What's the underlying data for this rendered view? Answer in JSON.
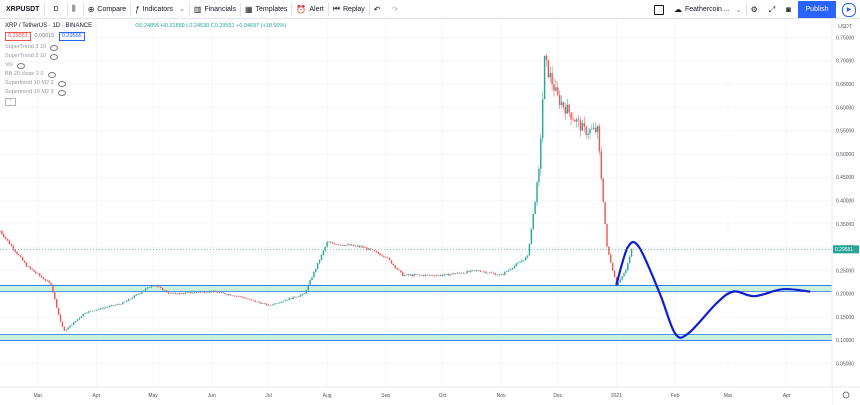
{
  "toolbar": {
    "symbol": "XRPUSDT",
    "interval": "D",
    "compare": "Compare",
    "indicators": "Indicators",
    "financials": "Financials",
    "templates": "Templates",
    "alert": "Alert",
    "replay": "Replay",
    "layout_name": "Feathercoin ...",
    "publish": "Publish"
  },
  "legend": {
    "title": "XRP / TetherUS · 1D · BINANCE",
    "ohlc": "O0.24856 H0.31889 L0.24530 C0.29551 +0.04697 (+18.90%)",
    "bid": "0.29551",
    "spread": "0.00015",
    "ask": "0.29566",
    "indicators": [
      "SuperTrend 3 10",
      "SuperTrend 2 10",
      "Vol",
      "BB 20 close 2 0",
      "Supertrend 10 M2 3",
      "Supertrend 10 M2 3"
    ]
  },
  "colors": {
    "up": "#26a69a",
    "down": "#ef5350",
    "projection": "#0d1fd1",
    "zone_fill": "#c9f2dc",
    "zone_line": "#2a6df4",
    "publish": "#2962ff"
  },
  "chart_data": {
    "type": "candlestick",
    "y_axis_label": "USDT",
    "ylim": [
      0.0,
      0.79
    ],
    "y_ticks": [
      0.05,
      0.1,
      0.15,
      0.2,
      0.25,
      0.3,
      0.35,
      0.4,
      0.45,
      0.5,
      0.55,
      0.6,
      0.65,
      0.7,
      0.75
    ],
    "y_tick_labels": [
      "0.05000",
      "0.10000",
      "0.15000",
      "0.20000",
      "0.25000",
      "0.30000",
      "0.35000",
      "0.40000",
      "0.45000",
      "0.50000",
      "0.55000",
      "0.60000",
      "0.65000",
      "0.70000",
      "0.75000"
    ],
    "last_price": 0.29551,
    "last_price_label": "0.29551",
    "x_labels": [
      "Mar",
      "Apr",
      "May",
      "Jun",
      "Jul",
      "Aug",
      "Sep",
      "Oct",
      "Nov",
      "Dec",
      "2021",
      "Feb",
      "Mar",
      "Apr"
    ],
    "x_label_dates": [
      "2020-03-01",
      "2020-04-01",
      "2020-05-01",
      "2020-06-01",
      "2020-07-01",
      "2020-08-01",
      "2020-09-01",
      "2020-10-01",
      "2020-11-01",
      "2020-12-01",
      "2021-01-01",
      "2021-02-01",
      "2021-03-01",
      "2021-04-01"
    ],
    "x_range": [
      "2020-02-10",
      "2021-04-25"
    ],
    "support_zones": [
      {
        "low": 0.205,
        "high": 0.218
      },
      {
        "low": 0.1,
        "high": 0.113
      }
    ],
    "price_path": [
      [
        "2020-02-10",
        0.335
      ],
      [
        "2020-02-24",
        0.26
      ],
      [
        "2020-03-08",
        0.22
      ],
      [
        "2020-03-13",
        0.14
      ],
      [
        "2020-03-15",
        0.12
      ],
      [
        "2020-03-26",
        0.16
      ],
      [
        "2020-04-15",
        0.18
      ],
      [
        "2020-05-01",
        0.22
      ],
      [
        "2020-05-10",
        0.2
      ],
      [
        "2020-06-01",
        0.205
      ],
      [
        "2020-06-15",
        0.195
      ],
      [
        "2020-07-01",
        0.175
      ],
      [
        "2020-07-20",
        0.2
      ],
      [
        "2020-08-01",
        0.31
      ],
      [
        "2020-08-20",
        0.3
      ],
      [
        "2020-09-01",
        0.28
      ],
      [
        "2020-09-10",
        0.24
      ],
      [
        "2020-10-01",
        0.24
      ],
      [
        "2020-10-20",
        0.25
      ],
      [
        "2020-11-01",
        0.24
      ],
      [
        "2020-11-15",
        0.28
      ],
      [
        "2020-11-21",
        0.46
      ],
      [
        "2020-11-24",
        0.7
      ],
      [
        "2020-12-01",
        0.62
      ],
      [
        "2020-12-15",
        0.55
      ],
      [
        "2020-12-22",
        0.55
      ],
      [
        "2020-12-27",
        0.3
      ],
      [
        "2021-01-01",
        0.22
      ],
      [
        "2021-01-06",
        0.25
      ],
      [
        "2021-01-09",
        0.29551
      ]
    ],
    "projection_path": [
      [
        "2021-01-01",
        0.22
      ],
      [
        "2021-01-07",
        0.3
      ],
      [
        "2021-01-13",
        0.3
      ],
      [
        "2021-01-24",
        0.2
      ],
      [
        "2021-02-01",
        0.115
      ],
      [
        "2021-02-08",
        0.115
      ],
      [
        "2021-02-23",
        0.18
      ],
      [
        "2021-03-04",
        0.205
      ],
      [
        "2021-03-15",
        0.195
      ],
      [
        "2021-03-30",
        0.21
      ],
      [
        "2021-04-13",
        0.205
      ]
    ]
  }
}
